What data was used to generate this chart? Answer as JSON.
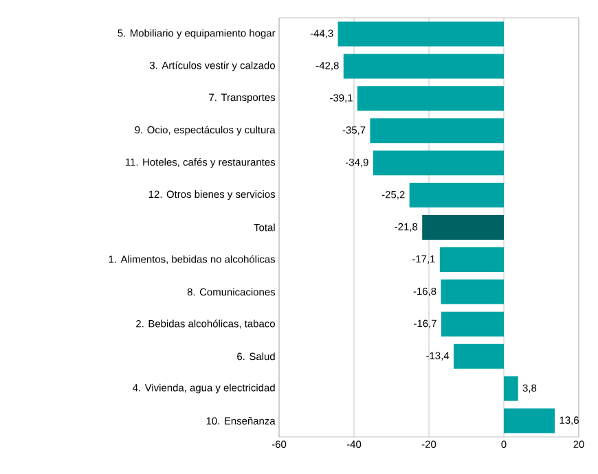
{
  "chart_data": {
    "type": "bar",
    "orientation": "horizontal",
    "categories": [
      "5. Mobiliario y equipamiento hogar",
      "3. Artículos vestir y calzado",
      "7. Transportes",
      "9. Ocio, espectáculos y cultura",
      "11. Hoteles, cafés y restaurantes",
      "12. Otros bienes y servicios",
      "Total",
      "1. Alimentos, bebidas no alcohólicas",
      "8. Comunicaciones",
      "2. Bebidas alcohólicas, tabaco",
      "6. Salud",
      "4. Vivienda, agua y electricidad",
      "10. Enseñanza"
    ],
    "values": [
      -44.3,
      -42.8,
      -39.1,
      -35.7,
      -34.9,
      -25.2,
      -21.8,
      -17.1,
      -16.8,
      -16.7,
      -13.4,
      3.8,
      13.6
    ],
    "colors": [
      "#00a3a3",
      "#00a3a3",
      "#00a3a3",
      "#00a3a3",
      "#00a3a3",
      "#00a3a3",
      "#006363",
      "#00a3a3",
      "#00a3a3",
      "#00a3a3",
      "#00a3a3",
      "#00a3a3",
      "#00a3a3"
    ],
    "value_labels": [
      "-44,3",
      "-42,8",
      "-39,1",
      "-35,7",
      "-34,9",
      "-25,2",
      "-21,8",
      "-17,1",
      "-16,8",
      "-16,7",
      "-13,4",
      "3,8",
      "13,6"
    ],
    "xlim": [
      -60,
      20
    ],
    "xticks": [
      -60,
      -40,
      -20,
      0,
      20
    ],
    "grid": "x"
  }
}
